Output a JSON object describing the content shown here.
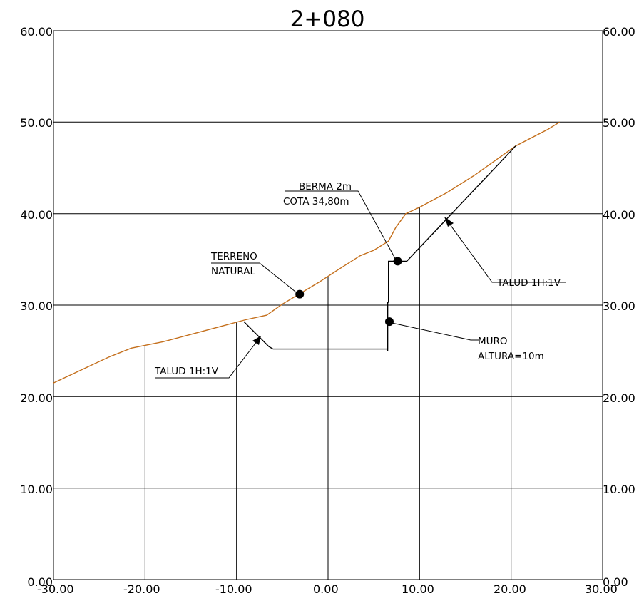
{
  "title": "2+080",
  "x_ticks": [
    "-30.00",
    "-20.00",
    "-10.00",
    "0.00",
    "10.00",
    "20.00",
    "30.00"
  ],
  "y_ticks_left": [
    "0.00",
    "10.00",
    "20.00",
    "30.00",
    "40.00",
    "50.00",
    "60.00"
  ],
  "y_ticks_right": [
    "0.00",
    "10.00",
    "20.00",
    "30.00",
    "40.00",
    "50.00",
    "60.00"
  ],
  "annotations": {
    "terreno_line1": "TERRENO",
    "terreno_line2": "NATURAL",
    "berma_line1": "BERMA 2m",
    "berma_line2": "COTA 34,80m",
    "talud_right": "TALUD 1H:1V",
    "talud_left": "TALUD 1H:1V",
    "muro_line1": "MURO",
    "muro_line2": "ALTURA=10m"
  },
  "colors": {
    "ground": "#c46f1c",
    "design": "#000000",
    "grid": "#000000"
  },
  "chart_data": {
    "type": "line",
    "title": "2+080",
    "xlim": [
      -30,
      30
    ],
    "ylim": [
      0,
      60
    ],
    "grid": true,
    "series": [
      {
        "x": [
          -30,
          -27,
          -24,
          -21.5,
          -18,
          -15,
          -12,
          -9,
          -6.7,
          -5,
          -3,
          -1,
          1,
          3.5,
          5,
          6.6,
          7.4,
          8.5,
          10,
          13,
          16,
          20.5,
          24,
          25.3
        ],
        "y": [
          21.5,
          22.9,
          24.3,
          25.3,
          26.0,
          26.8,
          27.6,
          28.4,
          28.9,
          30.1,
          31.3,
          32.5,
          33.8,
          35.4,
          36.0,
          37.0,
          38.5,
          40.0,
          40.7,
          42.3,
          44.2,
          47.4,
          49.2,
          50.0
        ]
      },
      {
        "x": [
          -9.2,
          -6.5,
          -6.0,
          6.5,
          6.5,
          6.6,
          6.6,
          8.6,
          20.5
        ],
        "y": [
          28.2,
          25.5,
          25.2,
          25.2,
          30.3,
          30.3,
          34.8,
          34.8,
          47.4
        ]
      }
    ],
    "points": [
      {
        "x": -3.1,
        "y": 31.2
      },
      {
        "x": 7.6,
        "y": 34.8
      },
      {
        "x": 6.7,
        "y": 28.2
      }
    ],
    "stations": [
      -20,
      -10,
      0,
      10,
      20
    ]
  }
}
